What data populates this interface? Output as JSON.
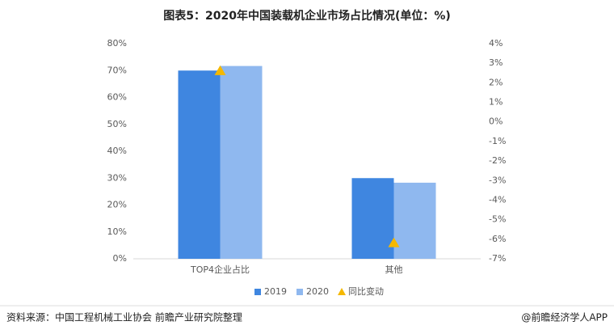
{
  "chart_data": {
    "type": "bar",
    "title": "图表5：2020年中国装载机企业市场占比情况(单位：%)",
    "categories": [
      "TOP4企业占比",
      "其他"
    ],
    "series": [
      {
        "name": "2019",
        "color": "#3f86e0",
        "values": [
          70,
          30
        ]
      },
      {
        "name": "2020",
        "color": "#8fb8ef",
        "values": [
          71.7,
          28.3
        ]
      },
      {
        "name": "同比变动",
        "color": "#f5b800",
        "values": [
          2.6,
          -6.2
        ],
        "axis": "y2",
        "marker": "triangle"
      }
    ],
    "ylim": [
      0,
      80
    ],
    "yticks": [
      {
        "value": 0,
        "label": "0%"
      },
      {
        "value": 10,
        "label": "10%"
      },
      {
        "value": 20,
        "label": "20%"
      },
      {
        "value": 30,
        "label": "30%"
      },
      {
        "value": 40,
        "label": "40%"
      },
      {
        "value": 50,
        "label": "50%"
      },
      {
        "value": 60,
        "label": "60%"
      },
      {
        "value": 70,
        "label": "70%"
      },
      {
        "value": 80,
        "label": "80%"
      }
    ],
    "y2lim": [
      -7,
      4
    ],
    "y2ticks": [
      {
        "value": -7,
        "label": "-7%"
      },
      {
        "value": -6,
        "label": "-6%"
      },
      {
        "value": -5,
        "label": "-5%"
      },
      {
        "value": -4,
        "label": "-4%"
      },
      {
        "value": -3,
        "label": "-3%"
      },
      {
        "value": -2,
        "label": "-2%"
      },
      {
        "value": -1,
        "label": "-1%"
      },
      {
        "value": 0,
        "label": "0%"
      },
      {
        "value": 1,
        "label": "1%"
      },
      {
        "value": 2,
        "label": "2%"
      },
      {
        "value": 3,
        "label": "3%"
      },
      {
        "value": 4,
        "label": "4%"
      }
    ],
    "legend": "bottom",
    "source": "资料来源：中国工程机械工业协会 前瞻产业研究院整理",
    "credit": "@前瞻经济学人APP"
  }
}
